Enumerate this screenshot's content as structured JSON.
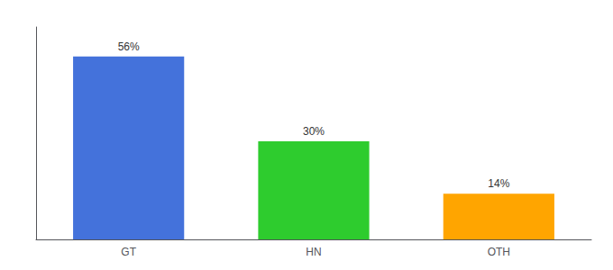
{
  "chart_data": {
    "type": "bar",
    "categories": [
      "GT",
      "HN",
      "OTH"
    ],
    "values": [
      56,
      30,
      14
    ],
    "value_labels": [
      "56%",
      "30%",
      "14%"
    ],
    "data_labels": true,
    "colors": [
      "#4472DB",
      "#2ECC2E",
      "#FFA500"
    ],
    "ylim": [
      0,
      65
    ],
    "tick_labels": "x",
    "grid": false
  }
}
